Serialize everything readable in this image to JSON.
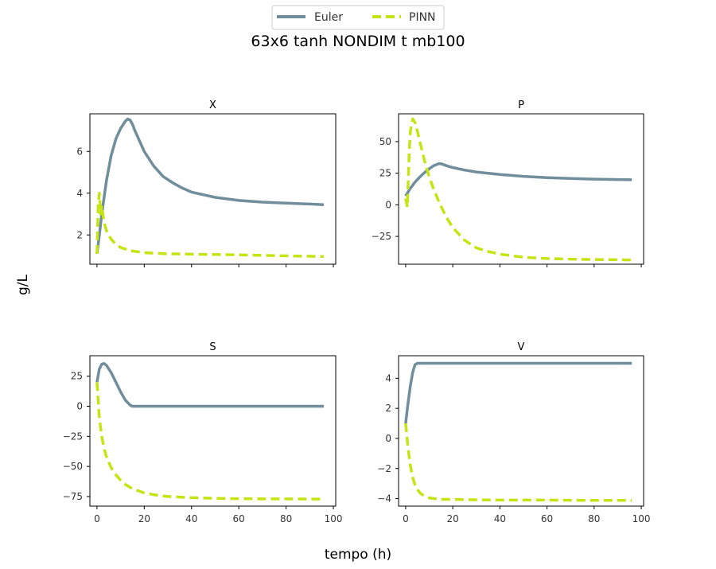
{
  "figure": {
    "title": "63x6 tanh NONDIM t mb100",
    "xlabel": "tempo (h)",
    "ylabel": "g/L"
  },
  "legend": {
    "placement": "top-center",
    "items": [
      {
        "label": "Euler",
        "color": "#708e9c",
        "style": "solid"
      },
      {
        "label": "PINN",
        "color": "#c6e314",
        "style": "dashed"
      }
    ]
  },
  "chart_data": [
    {
      "type": "line",
      "title": "X",
      "xlim": [
        -3,
        101
      ],
      "ylim": [
        0.6,
        7.8
      ],
      "xticks": [
        0,
        20,
        40,
        60,
        80,
        100
      ],
      "xtick_labels_visible": false,
      "yticks": [
        2,
        4,
        6
      ],
      "series": [
        {
          "name": "Euler",
          "x": [
            0,
            1,
            2,
            4,
            6,
            8,
            10,
            12,
            13,
            14,
            15,
            16,
            18,
            20,
            24,
            28,
            32,
            36,
            40,
            50,
            60,
            70,
            80,
            90,
            96
          ],
          "y": [
            1.1,
            2.0,
            3.0,
            4.6,
            5.8,
            6.6,
            7.1,
            7.45,
            7.55,
            7.5,
            7.3,
            7.0,
            6.5,
            6.0,
            5.3,
            4.8,
            4.5,
            4.25,
            4.05,
            3.8,
            3.65,
            3.57,
            3.52,
            3.48,
            3.45
          ]
        },
        {
          "name": "PINN",
          "x": [
            0,
            0.5,
            1,
            1.5,
            2,
            3,
            4,
            6,
            8,
            10,
            14,
            20,
            30,
            40,
            60,
            80,
            96
          ],
          "y": [
            1.1,
            3.4,
            4.0,
            3.0,
            3.4,
            2.6,
            2.2,
            1.8,
            1.55,
            1.4,
            1.25,
            1.15,
            1.1,
            1.08,
            1.05,
            1.0,
            0.97
          ]
        }
      ]
    },
    {
      "type": "line",
      "title": "P",
      "xlim": [
        -3,
        101
      ],
      "ylim": [
        -47,
        72
      ],
      "xticks": [
        0,
        20,
        40,
        60,
        80,
        100
      ],
      "xtick_labels_visible": false,
      "yticks": [
        -25,
        0,
        25,
        50
      ],
      "series": [
        {
          "name": "Euler",
          "x": [
            0,
            2,
            4,
            6,
            8,
            10,
            12,
            14,
            15,
            16,
            18,
            20,
            25,
            30,
            40,
            50,
            60,
            70,
            80,
            90,
            96
          ],
          "y": [
            7,
            13,
            18,
            22,
            25.5,
            28.5,
            31,
            32.5,
            32.5,
            31.8,
            30.5,
            29.5,
            27.5,
            26,
            24,
            22.5,
            21.5,
            20.8,
            20.3,
            20,
            19.8
          ]
        },
        {
          "name": "PINN",
          "x": [
            0,
            0.7,
            1,
            1.5,
            2,
            3,
            4,
            5,
            6,
            8,
            10,
            12,
            14,
            16,
            18,
            20,
            25,
            30,
            35,
            40,
            50,
            60,
            70,
            80,
            90,
            96
          ],
          "y": [
            5,
            -2,
            12,
            40,
            58,
            68,
            65,
            58,
            50,
            35,
            22,
            12,
            3,
            -5,
            -12,
            -18,
            -28,
            -34,
            -37,
            -39,
            -41.5,
            -42.5,
            -43,
            -43.3,
            -43.5,
            -43.6
          ]
        }
      ]
    },
    {
      "type": "line",
      "title": "S",
      "xlim": [
        -3,
        101
      ],
      "ylim": [
        -83,
        42
      ],
      "xticks": [
        0,
        20,
        40,
        60,
        80,
        100
      ],
      "xtick_labels_visible": true,
      "yticks": [
        -75,
        -50,
        -25,
        0,
        25
      ],
      "series": [
        {
          "name": "Euler",
          "x": [
            0,
            1,
            2,
            3,
            4,
            6,
            8,
            10,
            12,
            14,
            15,
            16,
            20,
            30,
            40,
            60,
            80,
            96
          ],
          "y": [
            20,
            31,
            35,
            35.5,
            34,
            28,
            20,
            12,
            5,
            1,
            0,
            0,
            0,
            0,
            0,
            0,
            0,
            0
          ]
        },
        {
          "name": "PINN",
          "x": [
            0,
            1,
            2,
            3,
            4,
            6,
            8,
            10,
            12,
            15,
            20,
            25,
            30,
            40,
            50,
            60,
            70,
            80,
            90,
            96
          ],
          "y": [
            20,
            -10,
            -25,
            -35,
            -42,
            -51,
            -57,
            -61.5,
            -65,
            -68.5,
            -72,
            -73.8,
            -75,
            -76,
            -76.5,
            -76.8,
            -77,
            -77,
            -77.1,
            -77.2
          ]
        }
      ]
    },
    {
      "type": "line",
      "title": "V",
      "xlim": [
        -3,
        101
      ],
      "ylim": [
        -4.5,
        5.5
      ],
      "xticks": [
        0,
        20,
        40,
        60,
        80,
        100
      ],
      "xtick_labels_visible": true,
      "yticks": [
        -4,
        -2,
        0,
        2,
        4
      ],
      "series": [
        {
          "name": "Euler",
          "x": [
            0,
            1,
            2,
            3,
            4,
            5,
            6,
            8,
            20,
            40,
            60,
            80,
            96
          ],
          "y": [
            1.0,
            2.3,
            3.5,
            4.4,
            4.9,
            5.0,
            5.0,
            5.0,
            5.0,
            5.0,
            5.0,
            5.0,
            5.0
          ]
        },
        {
          "name": "PINN",
          "x": [
            0,
            0.5,
            1,
            2,
            3,
            4,
            5,
            6,
            8,
            10,
            12,
            15,
            20,
            30,
            40,
            60,
            80,
            96
          ],
          "y": [
            1.0,
            0.2,
            -0.6,
            -1.8,
            -2.6,
            -3.1,
            -3.4,
            -3.6,
            -3.85,
            -3.95,
            -4.0,
            -4.05,
            -4.05,
            -4.08,
            -4.1,
            -4.1,
            -4.12,
            -4.12
          ]
        }
      ]
    }
  ]
}
